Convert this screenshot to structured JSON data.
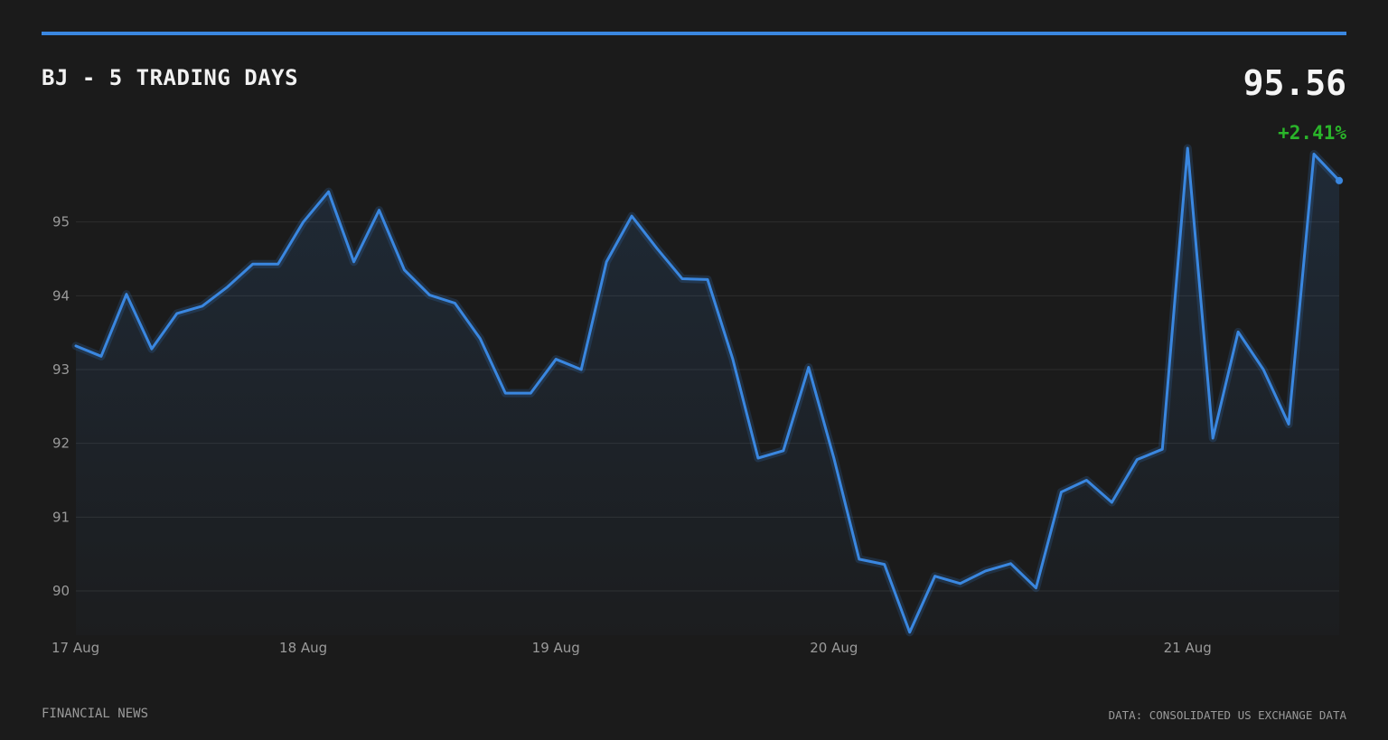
{
  "header": {
    "title": "BJ - 5 TRADING DAYS",
    "price": "95.56",
    "change": "+2.41%"
  },
  "footer": {
    "source_left": "FINANCIAL NEWS",
    "source_right": "DATA: CONSOLIDATED US EXCHANGE DATA"
  },
  "colors": {
    "background": "#1b1b1b",
    "accent": "#3a87e0",
    "positive": "#2ab52a",
    "grid": "#2e2e2e"
  },
  "chart_data": {
    "type": "area",
    "title": "BJ - 5 TRADING DAYS",
    "xlabel": "",
    "ylabel": "",
    "ylim": [
      89.4,
      96.0
    ],
    "yticks": [
      90,
      91,
      92,
      93,
      94,
      95
    ],
    "xticks": [
      {
        "label": "17 Aug",
        "index": 0
      },
      {
        "label": "18 Aug",
        "index": 9
      },
      {
        "label": "19 Aug",
        "index": 19
      },
      {
        "label": "20 Aug",
        "index": 30
      },
      {
        "label": "21 Aug",
        "index": 44
      }
    ],
    "grid": true,
    "legend": "none",
    "series": [
      {
        "values": [
          93.32,
          93.18,
          94.02,
          93.28,
          93.76,
          93.86,
          94.12,
          94.43,
          94.43,
          95.0,
          95.41,
          94.46,
          95.16,
          94.35,
          94.01,
          93.9,
          93.42,
          92.68,
          92.68,
          93.14,
          93.0,
          94.46,
          95.08,
          94.64,
          94.23,
          94.22,
          93.14,
          91.8,
          91.9,
          93.03,
          91.8,
          90.43,
          90.36,
          89.44,
          90.2,
          90.1,
          90.27,
          90.37,
          90.04,
          91.34,
          91.5,
          91.2,
          91.78,
          91.92,
          96.0,
          92.07,
          93.51,
          93.0,
          92.26,
          95.92,
          95.56
        ]
      }
    ]
  }
}
